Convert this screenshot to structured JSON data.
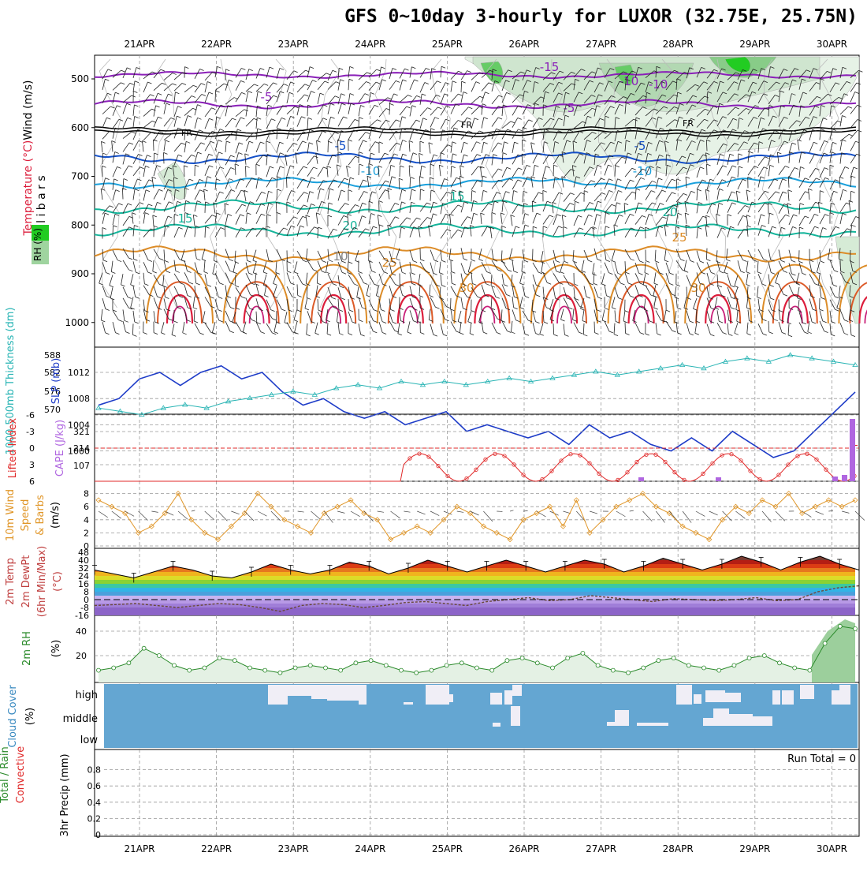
{
  "title": "GFS 0~10day 3-hourly for LUXOR (32.75E, 25.75N)",
  "dates": [
    "21APR",
    "22APR",
    "23APR",
    "24APR",
    "25APR",
    "26APR",
    "27APR",
    "28APR",
    "29APR",
    "30APR"
  ],
  "colors": {
    "purple": "#8a1fb8",
    "blue": "#1450c8",
    "cyan": "#1aa0dc",
    "teal": "#14b49a",
    "orange": "#dc8c28",
    "red": "#dc1e3c",
    "slp": "#1e3cc8",
    "thick": "#28b4b4",
    "lifted": "#e02828",
    "cape": "#b066e0",
    "wind": "#e09628",
    "rh": "#2a8a2a",
    "cloud": "#64a6d2"
  },
  "panels": {
    "upper": {
      "ylabel_wind": "Wind (m/s)",
      "ylabel_temp": "Temperature (°C)",
      "ylabel_rh": "RH (%)",
      "ylabel_mb": "m i l l i b a r s",
      "yticks": [
        "500",
        "600",
        "700",
        "800",
        "900",
        "1000"
      ],
      "isotherm_labels": [
        {
          "text": "-15",
          "color": "purple"
        },
        {
          "text": "-10",
          "color": "purple"
        },
        {
          "text": "-10",
          "color": "purple"
        },
        {
          "text": "-5",
          "color": "purple"
        },
        {
          "text": "-5",
          "color": "purple"
        },
        {
          "text": "FR",
          "color": "black"
        },
        {
          "text": "FR",
          "color": "black"
        },
        {
          "text": "FR",
          "color": "black"
        },
        {
          "text": "-5",
          "color": "blue"
        },
        {
          "text": "-5",
          "color": "blue"
        },
        {
          "text": "-10",
          "color": "cyan"
        },
        {
          "text": "-10",
          "color": "cyan"
        },
        {
          "text": "15",
          "color": "teal"
        },
        {
          "text": "15",
          "color": "teal"
        },
        {
          "text": "20",
          "color": "teal"
        },
        {
          "text": "20",
          "color": "teal"
        },
        {
          "text": "25",
          "color": "orange"
        },
        {
          "text": "25",
          "color": "orange"
        },
        {
          "text": "30",
          "color": "orange"
        },
        {
          "text": "30",
          "color": "orange"
        },
        {
          "text": "10",
          "color": "gray"
        }
      ]
    },
    "slp": {
      "ylabel_thick": "1000-500mb Thickness (dm)",
      "ylabel_slp": "SLP (mb)",
      "thick_ticks": [
        "588",
        "582",
        "576",
        "570"
      ],
      "slp_ticks": [
        "1012",
        "1008",
        "1004",
        "1000"
      ]
    },
    "cape": {
      "ylabel_li": "Lifted Index",
      "ylabel_cape": "CAPE (J/kg)",
      "li_ticks": [
        "-6",
        "-3",
        "0",
        "3",
        "6"
      ],
      "cape_ticks": [
        "321",
        "214",
        "107"
      ]
    },
    "wind10": {
      "ylabel1": "10m Wind",
      "ylabel2": "Speed",
      "ylabel3": "& Barbs",
      "ylabel4": "(m/s)",
      "ticks": [
        "8",
        "6",
        "4",
        "2",
        "0"
      ]
    },
    "temp2m": {
      "ylabel1": "2m Temp",
      "ylabel2": "2m DewPt",
      "ylabel3": "(6hr Min/Max)",
      "ylabel4": "(°C)",
      "ticks": [
        "48",
        "40",
        "32",
        "24",
        "16",
        "8",
        "0",
        "-8",
        "-16"
      ]
    },
    "rh2m": {
      "ylabel1": "2m RH",
      "ylabel2": "(%)",
      "ticks": [
        "40",
        "20"
      ]
    },
    "cloud": {
      "ylabel1": "Cloud Cover",
      "ylabel2": "(%)",
      "labels": [
        "high",
        "middle",
        "low"
      ]
    },
    "precip": {
      "ylabel1": "Total / Rain",
      "ylabel2": "Convective",
      "ylabel3": "3hr Precip (mm)",
      "ticks": [
        "0.8",
        "0.6",
        "0.4",
        "0.2",
        "0"
      ],
      "run_total": "Run Total = 0"
    }
  },
  "chart_data": {
    "type": "line",
    "x_dates": [
      "21APR",
      "22APR",
      "23APR",
      "24APR",
      "25APR",
      "26APR",
      "27APR",
      "28APR",
      "29APR",
      "30APR"
    ],
    "slp_mb": [
      1007,
      1008,
      1011,
      1012,
      1010,
      1012,
      1013,
      1011,
      1012,
      1009,
      1007,
      1008,
      1006,
      1005,
      1006,
      1004,
      1005,
      1006,
      1003,
      1004,
      1003,
      1002,
      1003,
      1001,
      1004,
      1002,
      1003,
      1001,
      1000,
      1002,
      1000,
      1003,
      1001,
      999,
      1000,
      1003,
      1006,
      1009
    ],
    "thickness_dm": [
      572,
      571,
      570,
      572,
      573,
      572,
      574,
      575,
      576,
      577,
      576,
      578,
      579,
      578,
      580,
      579,
      580,
      579,
      580,
      581,
      580,
      581,
      582,
      583,
      582,
      583,
      584,
      585,
      584,
      586,
      587,
      586,
      588,
      587,
      586,
      585
    ],
    "lifted_index_points": [
      [
        4.6,
        5.5
      ],
      [
        5.1,
        1.5
      ],
      [
        6.5,
        2.0
      ],
      [
        7.3,
        0
      ],
      [
        8.1,
        0
      ],
      [
        8.9,
        1.0
      ],
      [
        9.6,
        0
      ]
    ],
    "wind10m_ms": [
      7,
      6,
      5,
      2,
      3,
      5,
      8,
      4,
      2,
      1,
      3,
      5,
      8,
      6,
      4,
      3,
      2,
      5,
      6,
      7,
      5,
      4,
      1,
      2,
      3,
      2,
      4,
      6,
      5,
      3,
      2,
      1,
      4,
      5,
      6,
      3,
      7,
      2,
      4,
      6,
      7,
      8,
      6,
      5,
      3,
      2,
      1,
      4,
      6,
      5,
      7,
      6,
      8,
      5,
      6,
      7,
      6,
      7
    ],
    "temp2m_c": [
      30,
      26,
      22,
      28,
      34,
      30,
      24,
      22,
      28,
      36,
      30,
      26,
      30,
      38,
      34,
      26,
      32,
      40,
      34,
      28,
      34,
      40,
      34,
      28,
      34,
      40,
      36,
      28,
      34,
      42,
      36,
      30,
      36,
      44,
      38,
      30,
      38,
      44,
      36,
      30
    ],
    "dewpt2m_c": [
      -6,
      -5,
      -4,
      -6,
      -8,
      -6,
      -4,
      -5,
      -8,
      -12,
      -6,
      -4,
      -5,
      -8,
      -6,
      -3,
      -2,
      -4,
      -6,
      -2,
      0,
      2,
      -1,
      0,
      4,
      2,
      0,
      -2,
      1,
      0,
      -1,
      0,
      2,
      -1,
      0,
      8,
      12,
      14
    ],
    "rh2m_pct": [
      8,
      10,
      14,
      26,
      20,
      12,
      8,
      10,
      18,
      16,
      10,
      8,
      6,
      10,
      12,
      10,
      8,
      14,
      16,
      12,
      8,
      6,
      8,
      12,
      14,
      10,
      8,
      16,
      18,
      14,
      10,
      18,
      22,
      12,
      8,
      6,
      10,
      16,
      18,
      12,
      10,
      8,
      12,
      18,
      20,
      14,
      10,
      8,
      30,
      44,
      42
    ],
    "run_total": "Run Total = 0"
  }
}
